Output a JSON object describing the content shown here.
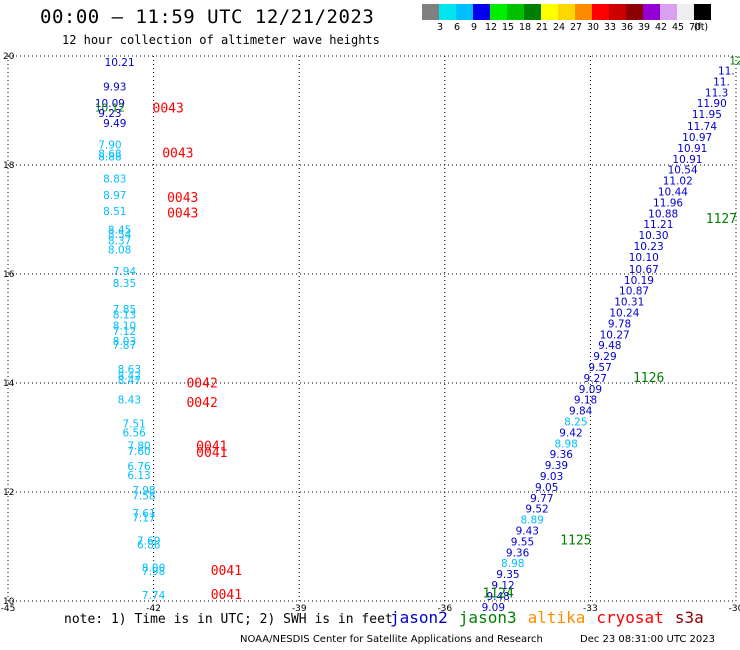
{
  "header": {
    "title": "00:00 — 11:59 UTC 12/21/2023",
    "subtitle": "12 hour collection of altimeter wave heights"
  },
  "colorbar": {
    "unit": "(ft)",
    "bins": [
      {
        "label": "3",
        "color": "#808080"
      },
      {
        "label": "6",
        "color": "#00e5ee"
      },
      {
        "label": "9",
        "color": "#00bfff"
      },
      {
        "label": "12",
        "color": "#0000ee"
      },
      {
        "label": "15",
        "color": "#00ee00"
      },
      {
        "label": "18",
        "color": "#00c000"
      },
      {
        "label": "21",
        "color": "#008000"
      },
      {
        "label": "24",
        "color": "#ffff00"
      },
      {
        "label": "27",
        "color": "#ffd700"
      },
      {
        "label": "30",
        "color": "#ff8c00"
      },
      {
        "label": "33",
        "color": "#ff0000"
      },
      {
        "label": "36",
        "color": "#cd0000"
      },
      {
        "label": "39",
        "color": "#8b0000"
      },
      {
        "label": "42",
        "color": "#9400d3"
      },
      {
        "label": "45",
        "color": "#d8a0f0"
      },
      {
        "label": "70",
        "color": "#eeeeee"
      },
      {
        "label": "",
        "color": "#000000"
      }
    ]
  },
  "footer": {
    "note": "note: 1) Time is in UTC; 2) SWH is in feet",
    "legend": [
      {
        "label": "jason2",
        "color": "#0000cd"
      },
      {
        "label": "jason3",
        "color": "#008000"
      },
      {
        "label": "altika",
        "color": "#ff8c00"
      },
      {
        "label": "cryosat",
        "color": "#ff0000"
      },
      {
        "label": "s3a",
        "color": "#8b0000"
      }
    ],
    "credit": "NOAA/NESDIS Center for Satellite Applications and Research",
    "stamp": "Dec 23 08:31:00 UTC 2023"
  },
  "chart_data": {
    "type": "scatter",
    "xlim": [
      -45,
      -30
    ],
    "ylim": [
      10,
      20
    ],
    "x_ticks": [
      -45,
      -42,
      -39,
      -36,
      -33,
      -30
    ],
    "y_ticks": [
      10,
      12,
      14,
      16,
      18,
      20
    ],
    "grid": true,
    "value_colors": {
      "light": "#00bfff",
      "blue": "#0000cd"
    },
    "time_colors": {
      "red": "#ff0000",
      "green": "#008000"
    },
    "points": [
      {
        "lon": -42.7,
        "lat": 19.82,
        "v": "10.21",
        "c": "blue"
      },
      {
        "lon": -42.8,
        "lat": 19.37,
        "v": "9.93",
        "c": "blue"
      },
      {
        "lon": -42.9,
        "lat": 19.06,
        "v": "10.09",
        "c": "blue"
      },
      {
        "lon": -42.9,
        "lat": 18.98,
        "v": "10.12",
        "c": "green"
      },
      {
        "lon": -42.9,
        "lat": 18.88,
        "v": "9.23",
        "c": "blue"
      },
      {
        "lon": -42.8,
        "lat": 18.7,
        "v": "9.49",
        "c": "blue"
      },
      {
        "lon": -42.9,
        "lat": 18.3,
        "v": "7.90",
        "c": "light"
      },
      {
        "lon": -42.9,
        "lat": 18.14,
        "v": "8.68",
        "c": "light"
      },
      {
        "lon": -42.9,
        "lat": 18.08,
        "v": "8.88",
        "c": "light"
      },
      {
        "lon": -42.8,
        "lat": 17.68,
        "v": "8.83",
        "c": "light"
      },
      {
        "lon": -42.8,
        "lat": 17.38,
        "v": "8.97",
        "c": "light"
      },
      {
        "lon": -42.8,
        "lat": 17.08,
        "v": "8.51",
        "c": "light"
      },
      {
        "lon": -42.7,
        "lat": 16.74,
        "v": "8.45",
        "c": "light"
      },
      {
        "lon": -42.7,
        "lat": 16.66,
        "v": "8.54",
        "c": "light"
      },
      {
        "lon": -42.7,
        "lat": 16.54,
        "v": "8.37",
        "c": "light"
      },
      {
        "lon": -42.7,
        "lat": 16.38,
        "v": "8.08",
        "c": "light"
      },
      {
        "lon": -42.6,
        "lat": 15.98,
        "v": "7.94",
        "c": "light"
      },
      {
        "lon": -42.6,
        "lat": 15.76,
        "v": "8.35",
        "c": "light"
      },
      {
        "lon": -42.6,
        "lat": 15.28,
        "v": "7.85",
        "c": "light"
      },
      {
        "lon": -42.6,
        "lat": 15.18,
        "v": "8.13",
        "c": "light"
      },
      {
        "lon": -42.6,
        "lat": 14.98,
        "v": "8.10",
        "c": "light"
      },
      {
        "lon": -42.6,
        "lat": 14.88,
        "v": "7.12",
        "c": "light"
      },
      {
        "lon": -42.6,
        "lat": 14.7,
        "v": "8.03",
        "c": "light"
      },
      {
        "lon": -42.6,
        "lat": 14.62,
        "v": "7.87",
        "c": "light"
      },
      {
        "lon": -42.5,
        "lat": 14.18,
        "v": "8.63",
        "c": "light"
      },
      {
        "lon": -42.5,
        "lat": 14.06,
        "v": "8.42",
        "c": "light"
      },
      {
        "lon": -42.5,
        "lat": 13.98,
        "v": "8.47",
        "c": "light"
      },
      {
        "lon": -42.5,
        "lat": 13.62,
        "v": "8.43",
        "c": "light"
      },
      {
        "lon": -42.4,
        "lat": 13.18,
        "v": "7.51",
        "c": "light"
      },
      {
        "lon": -42.4,
        "lat": 13.02,
        "v": "6.56",
        "c": "light"
      },
      {
        "lon": -42.3,
        "lat": 12.78,
        "v": "7.80",
        "c": "light"
      },
      {
        "lon": -42.3,
        "lat": 12.68,
        "v": "7.60",
        "c": "light"
      },
      {
        "lon": -42.3,
        "lat": 12.4,
        "v": "6.76",
        "c": "light"
      },
      {
        "lon": -42.3,
        "lat": 12.24,
        "v": "6.13",
        "c": "light"
      },
      {
        "lon": -42.2,
        "lat": 11.96,
        "v": "7.98",
        "c": "light"
      },
      {
        "lon": -42.2,
        "lat": 11.86,
        "v": "7.58",
        "c": "light"
      },
      {
        "lon": -42.2,
        "lat": 11.54,
        "v": "7.61",
        "c": "light"
      },
      {
        "lon": -42.2,
        "lat": 11.46,
        "v": "7.17",
        "c": "light"
      },
      {
        "lon": -42.1,
        "lat": 11.04,
        "v": "7.69",
        "c": "light"
      },
      {
        "lon": -42.1,
        "lat": 10.96,
        "v": "6.86",
        "c": "light"
      },
      {
        "lon": -42.0,
        "lat": 10.54,
        "v": "8.00",
        "c": "light"
      },
      {
        "lon": -42.0,
        "lat": 10.48,
        "v": "7.98",
        "c": "light"
      },
      {
        "lon": -42.0,
        "lat": 10.04,
        "v": "7.74",
        "c": "light"
      },
      {
        "lon": -30.0,
        "lat": 19.84,
        "v": "12",
        "c": "green"
      },
      {
        "lon": -30.2,
        "lat": 19.66,
        "v": "11.",
        "c": "blue"
      },
      {
        "lon": -30.3,
        "lat": 19.46,
        "v": "11.",
        "c": "blue"
      },
      {
        "lon": -30.4,
        "lat": 19.26,
        "v": "11.3",
        "c": "blue"
      },
      {
        "lon": -30.5,
        "lat": 19.06,
        "v": "11.90",
        "c": "blue"
      },
      {
        "lon": -30.6,
        "lat": 18.86,
        "v": "11.95",
        "c": "blue"
      },
      {
        "lon": -30.7,
        "lat": 18.64,
        "v": "11.74",
        "c": "blue"
      },
      {
        "lon": -30.8,
        "lat": 18.44,
        "v": "10.97",
        "c": "blue"
      },
      {
        "lon": -30.9,
        "lat": 18.24,
        "v": "10.91",
        "c": "blue"
      },
      {
        "lon": -31.0,
        "lat": 18.04,
        "v": "10.91",
        "c": "blue"
      },
      {
        "lon": -31.1,
        "lat": 17.84,
        "v": "10.54",
        "c": "blue"
      },
      {
        "lon": -31.2,
        "lat": 17.64,
        "v": "11.02",
        "c": "blue"
      },
      {
        "lon": -31.3,
        "lat": 17.44,
        "v": "10.44",
        "c": "blue"
      },
      {
        "lon": -31.4,
        "lat": 17.24,
        "v": "11.96",
        "c": "blue"
      },
      {
        "lon": -31.5,
        "lat": 17.04,
        "v": "10.88",
        "c": "blue"
      },
      {
        "lon": -31.6,
        "lat": 16.84,
        "v": "11.21",
        "c": "blue"
      },
      {
        "lon": -31.7,
        "lat": 16.64,
        "v": "10.30",
        "c": "blue"
      },
      {
        "lon": -31.8,
        "lat": 16.44,
        "v": "10.23",
        "c": "blue"
      },
      {
        "lon": -31.9,
        "lat": 16.24,
        "v": "10.10",
        "c": "blue"
      },
      {
        "lon": -31.9,
        "lat": 16.02,
        "v": "10.67",
        "c": "blue"
      },
      {
        "lon": -32.0,
        "lat": 15.82,
        "v": "10.19",
        "c": "blue"
      },
      {
        "lon": -32.1,
        "lat": 15.62,
        "v": "10.87",
        "c": "blue"
      },
      {
        "lon": -32.2,
        "lat": 15.42,
        "v": "10.31",
        "c": "blue"
      },
      {
        "lon": -32.3,
        "lat": 15.22,
        "v": "10.24",
        "c": "blue"
      },
      {
        "lon": -32.4,
        "lat": 15.02,
        "v": "9.78",
        "c": "blue"
      },
      {
        "lon": -32.5,
        "lat": 14.82,
        "v": "10.27",
        "c": "blue"
      },
      {
        "lon": -32.6,
        "lat": 14.62,
        "v": "9.48",
        "c": "blue"
      },
      {
        "lon": -32.7,
        "lat": 14.42,
        "v": "9.29",
        "c": "blue"
      },
      {
        "lon": -32.8,
        "lat": 14.22,
        "v": "9.57",
        "c": "blue"
      },
      {
        "lon": -32.9,
        "lat": 14.02,
        "v": "9.27",
        "c": "blue"
      },
      {
        "lon": -33.0,
        "lat": 13.82,
        "v": "9.09",
        "c": "blue"
      },
      {
        "lon": -33.1,
        "lat": 13.62,
        "v": "9.18",
        "c": "blue"
      },
      {
        "lon": -33.2,
        "lat": 13.42,
        "v": "9.84",
        "c": "blue"
      },
      {
        "lon": -33.3,
        "lat": 13.22,
        "v": "8.25",
        "c": "light"
      },
      {
        "lon": -33.4,
        "lat": 13.02,
        "v": "9.42",
        "c": "blue"
      },
      {
        "lon": -33.5,
        "lat": 12.82,
        "v": "8.98",
        "c": "light"
      },
      {
        "lon": -33.6,
        "lat": 12.62,
        "v": "9.36",
        "c": "blue"
      },
      {
        "lon": -33.7,
        "lat": 12.42,
        "v": "9.39",
        "c": "blue"
      },
      {
        "lon": -33.8,
        "lat": 12.22,
        "v": "9.03",
        "c": "blue"
      },
      {
        "lon": -33.9,
        "lat": 12.02,
        "v": "9.05",
        "c": "blue"
      },
      {
        "lon": -34.0,
        "lat": 11.82,
        "v": "9.77",
        "c": "blue"
      },
      {
        "lon": -34.1,
        "lat": 11.62,
        "v": "9.52",
        "c": "blue"
      },
      {
        "lon": -34.2,
        "lat": 11.42,
        "v": "8.89",
        "c": "light"
      },
      {
        "lon": -34.3,
        "lat": 11.22,
        "v": "9.43",
        "c": "blue"
      },
      {
        "lon": -34.4,
        "lat": 11.02,
        "v": "9.55",
        "c": "blue"
      },
      {
        "lon": -34.5,
        "lat": 10.82,
        "v": "9.36",
        "c": "blue"
      },
      {
        "lon": -34.6,
        "lat": 10.62,
        "v": "8.98",
        "c": "light"
      },
      {
        "lon": -34.7,
        "lat": 10.42,
        "v": "9.35",
        "c": "blue"
      },
      {
        "lon": -34.8,
        "lat": 10.22,
        "v": "9.12",
        "c": "blue"
      },
      {
        "lon": -34.9,
        "lat": 10.02,
        "v": "9.48",
        "c": "blue"
      },
      {
        "lon": -35.0,
        "lat": 9.82,
        "v": "9.09",
        "c": "blue"
      }
    ],
    "time_labels": [
      {
        "lon": -41.7,
        "lat": 18.96,
        "t": "0043",
        "c": "red"
      },
      {
        "lon": -41.5,
        "lat": 18.14,
        "t": "0043",
        "c": "red"
      },
      {
        "lon": -41.4,
        "lat": 17.32,
        "t": "0043",
        "c": "red"
      },
      {
        "lon": -41.4,
        "lat": 17.04,
        "t": "0043",
        "c": "red"
      },
      {
        "lon": -41.0,
        "lat": 13.92,
        "t": "0042",
        "c": "red"
      },
      {
        "lon": -41.0,
        "lat": 13.56,
        "t": "0042",
        "c": "red"
      },
      {
        "lon": -40.8,
        "lat": 12.76,
        "t": "0041",
        "c": "red"
      },
      {
        "lon": -40.8,
        "lat": 12.64,
        "t": "0041",
        "c": "red"
      },
      {
        "lon": -40.5,
        "lat": 10.48,
        "t": "0041",
        "c": "red"
      },
      {
        "lon": -40.5,
        "lat": 10.04,
        "t": "0041",
        "c": "red"
      },
      {
        "lon": -30.3,
        "lat": 16.94,
        "t": "1127",
        "c": "green"
      },
      {
        "lon": -31.8,
        "lat": 14.02,
        "t": "1126",
        "c": "green"
      },
      {
        "lon": -33.3,
        "lat": 11.04,
        "t": "1125",
        "c": "green"
      },
      {
        "lon": -34.9,
        "lat": 10.06,
        "t": "1124",
        "c": "green"
      }
    ]
  }
}
